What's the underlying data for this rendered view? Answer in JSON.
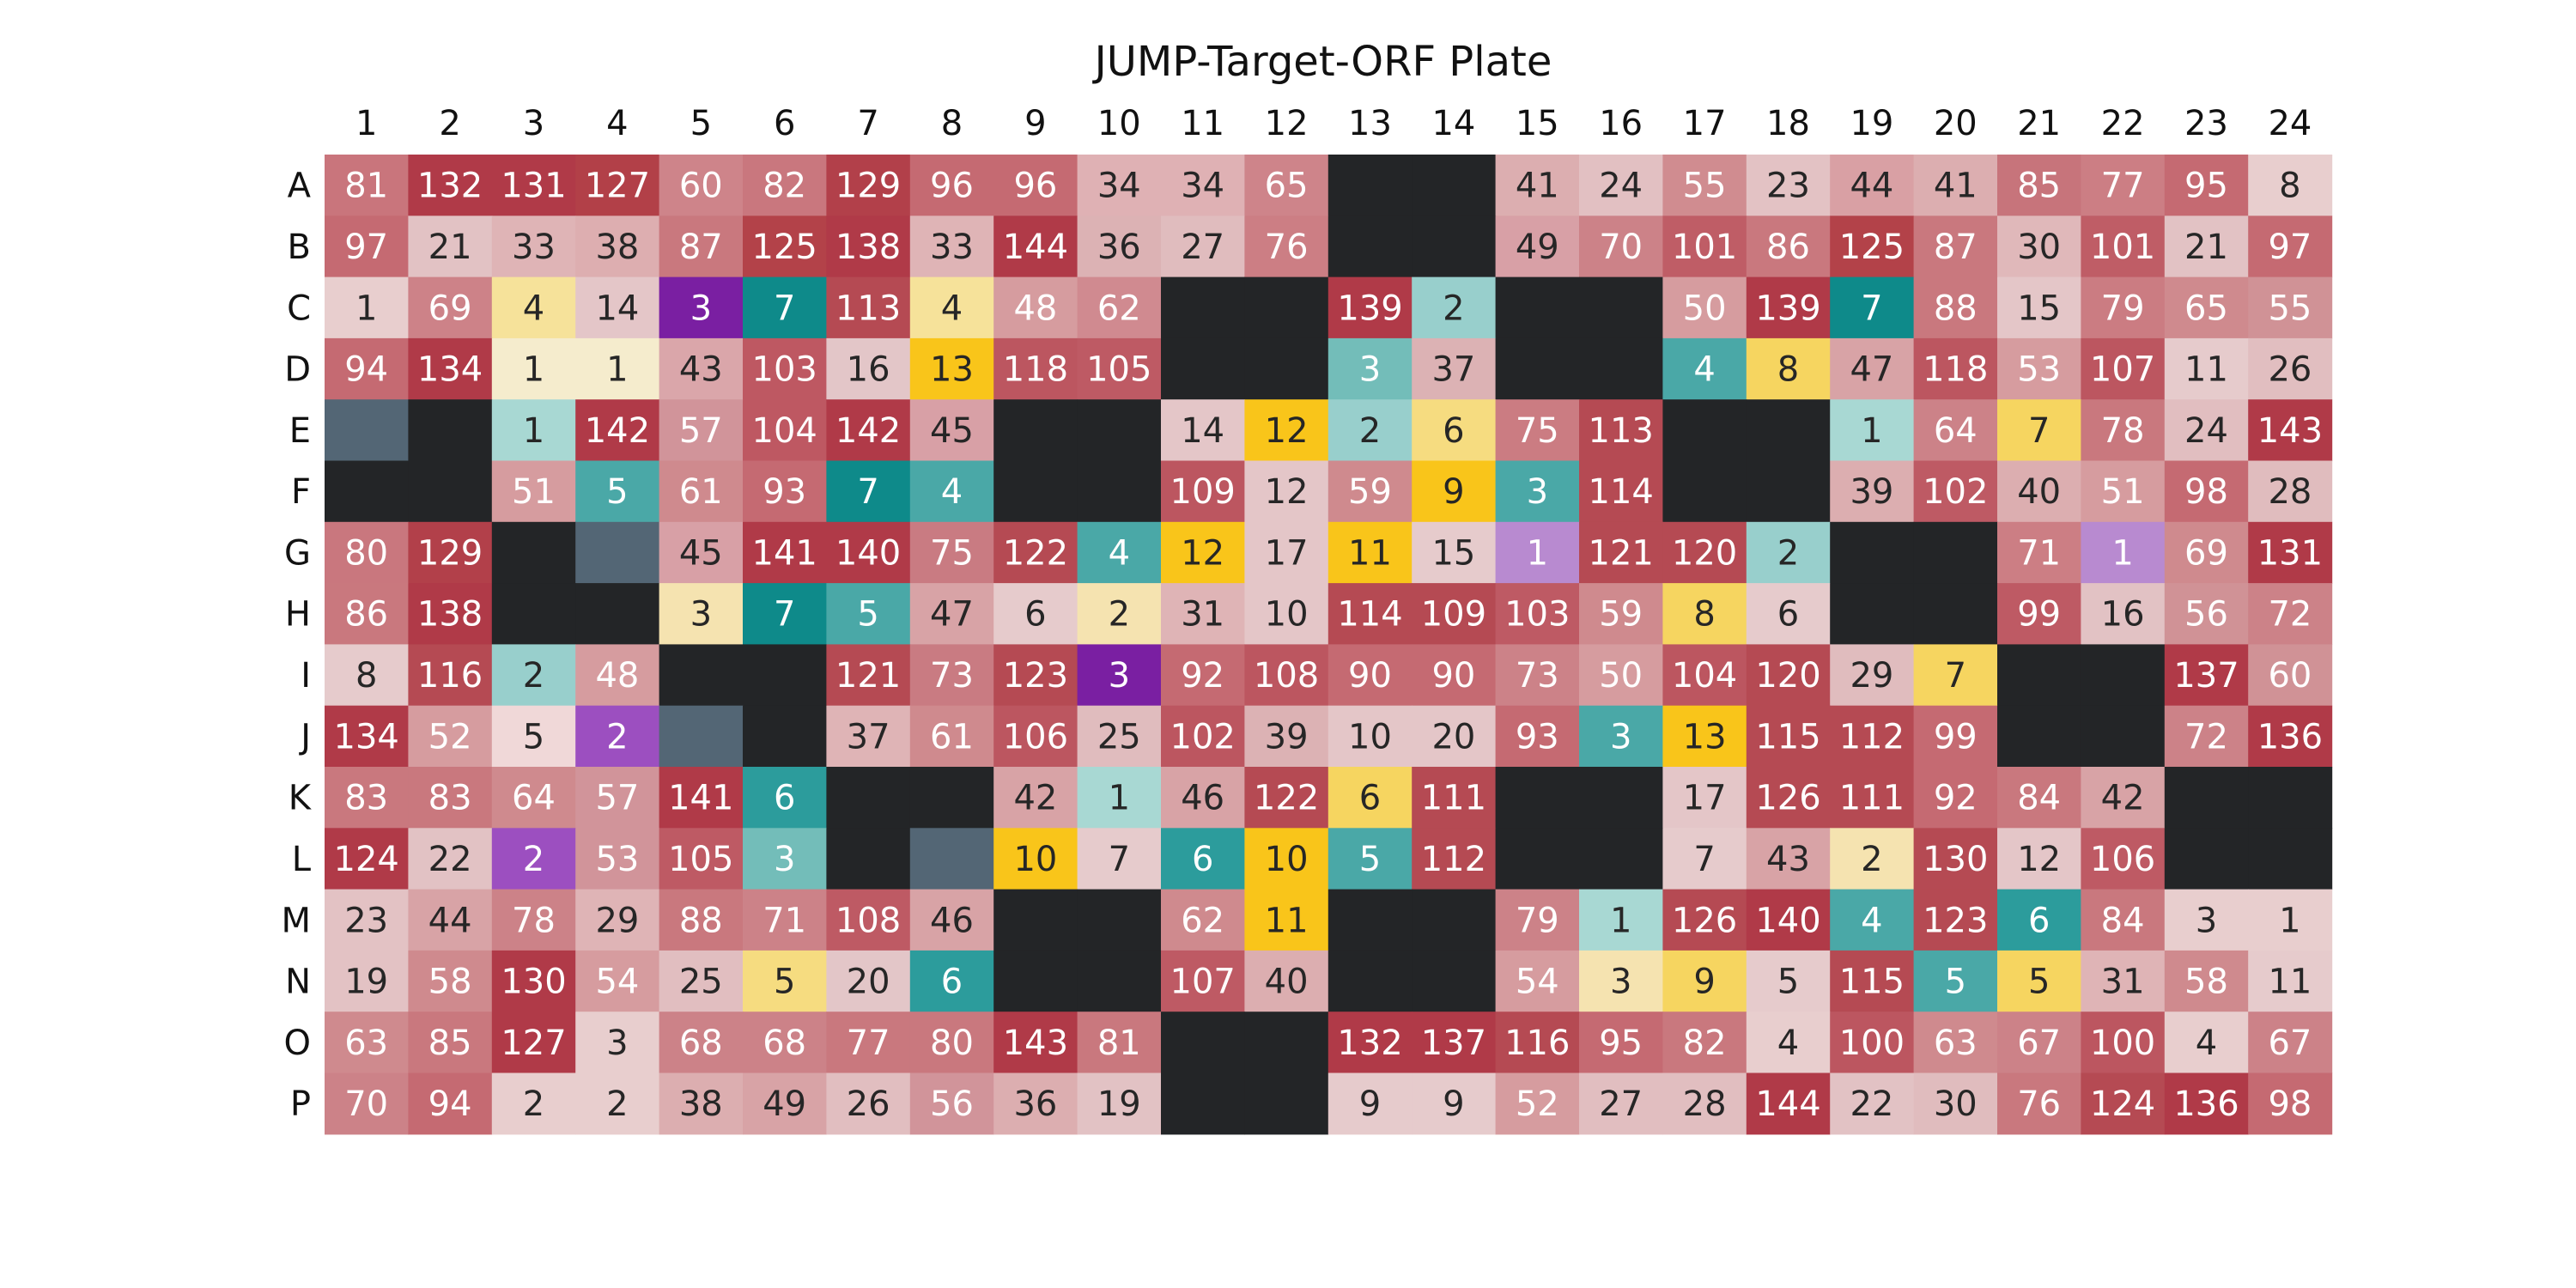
{
  "chart_data": {
    "type": "heatmap",
    "title": "JUMP-Target-ORF Plate",
    "columns": [
      "1",
      "2",
      "3",
      "4",
      "5",
      "6",
      "7",
      "8",
      "9",
      "10",
      "11",
      "12",
      "13",
      "14",
      "15",
      "16",
      "17",
      "18",
      "19",
      "20",
      "21",
      "22",
      "23",
      "24"
    ],
    "rows": [
      "A",
      "B",
      "C",
      "D",
      "E",
      "F",
      "G",
      "H",
      "I",
      "J",
      "K",
      "L",
      "M",
      "N",
      "O",
      "P"
    ],
    "category_colors": {
      "empty": "#232527",
      "control": "#536675",
      "count_high": "#b03a48",
      "count_low": "#e8cece",
      "yellow": "#f9c51a",
      "teal": "#0e8a8a",
      "purple": "#7a1fa2"
    },
    "wells": [
      [
        "81",
        "132",
        "131",
        "127",
        "60",
        "82",
        "129",
        "96",
        "96",
        "34",
        "34",
        "65",
        "",
        "",
        "41",
        "24",
        "55",
        "23",
        "44",
        "41",
        "85",
        "77",
        "95",
        "8"
      ],
      [
        "97",
        "21",
        "33",
        "38",
        "87",
        "125",
        "138",
        "33",
        "144",
        "36",
        "27",
        "76",
        "",
        "",
        "49",
        "70",
        "101",
        "86",
        "125",
        "87",
        "30",
        "101",
        "21",
        "97"
      ],
      [
        "1",
        "69",
        "4",
        "14",
        "3",
        "7",
        "113",
        "4",
        "48",
        "62",
        "",
        "",
        "139",
        "2",
        "",
        "",
        "50",
        "139",
        "7",
        "88",
        "15",
        "79",
        "65",
        "55"
      ],
      [
        "94",
        "134",
        "1",
        "1",
        "43",
        "103",
        "16",
        "13",
        "118",
        "105",
        "",
        "",
        "3",
        "37",
        "",
        "",
        "4",
        "8",
        "47",
        "118",
        "53",
        "107",
        "11",
        "26"
      ],
      [
        "",
        "",
        "1",
        "142",
        "57",
        "104",
        "142",
        "45",
        "",
        "",
        "14",
        "12",
        "2",
        "6",
        "75",
        "113",
        "",
        "",
        "1",
        "64",
        "7",
        "78",
        "24",
        "143"
      ],
      [
        "",
        "",
        "51",
        "5",
        "61",
        "93",
        "7",
        "4",
        "",
        "",
        "109",
        "12",
        "59",
        "9",
        "3",
        "114",
        "",
        "",
        "39",
        "102",
        "40",
        "51",
        "98",
        "28"
      ],
      [
        "80",
        "129",
        "",
        "",
        "45",
        "141",
        "140",
        "75",
        "122",
        "4",
        "12",
        "17",
        "11",
        "15",
        "1",
        "121",
        "120",
        "2",
        "",
        "",
        "71",
        "1",
        "69",
        "131"
      ],
      [
        "86",
        "138",
        "",
        "",
        "3",
        "7",
        "5",
        "47",
        "6",
        "2",
        "31",
        "10",
        "114",
        "109",
        "103",
        "59",
        "8",
        "6",
        "",
        "",
        "99",
        "16",
        "56",
        "72"
      ],
      [
        "8",
        "116",
        "2",
        "48",
        "",
        "",
        "121",
        "73",
        "123",
        "3",
        "92",
        "108",
        "90",
        "90",
        "73",
        "50",
        "104",
        "120",
        "29",
        "7",
        "",
        "",
        "137",
        "60"
      ],
      [
        "134",
        "52",
        "5",
        "2",
        "",
        "",
        "37",
        "61",
        "106",
        "25",
        "102",
        "39",
        "10",
        "20",
        "93",
        "3",
        "13",
        "115",
        "112",
        "99",
        "",
        "",
        "72",
        "136"
      ],
      [
        "83",
        "83",
        "64",
        "57",
        "141",
        "6",
        "",
        "",
        "42",
        "1",
        "46",
        "122",
        "6",
        "111",
        "",
        "",
        "17",
        "126",
        "111",
        "92",
        "84",
        "42",
        "",
        ""
      ],
      [
        "124",
        "22",
        "2",
        "53",
        "105",
        "3",
        "",
        "",
        "10",
        "7",
        "6",
        "10",
        "5",
        "112",
        "",
        "",
        "7",
        "43",
        "2",
        "130",
        "12",
        "106",
        "",
        ""
      ],
      [
        "23",
        "44",
        "78",
        "29",
        "88",
        "71",
        "108",
        "46",
        "",
        "",
        "62",
        "11",
        "",
        "",
        "79",
        "1",
        "126",
        "140",
        "4",
        "123",
        "6",
        "84",
        "3",
        "1"
      ],
      [
        "19",
        "58",
        "130",
        "54",
        "25",
        "5",
        "20",
        "6",
        "",
        "",
        "107",
        "40",
        "",
        "",
        "54",
        "3",
        "9",
        "5",
        "115",
        "5",
        "5",
        "31",
        "58",
        "11"
      ],
      [
        "63",
        "85",
        "127",
        "3",
        "68",
        "68",
        "77",
        "80",
        "143",
        "81",
        "",
        "",
        "132",
        "137",
        "116",
        "95",
        "82",
        "4",
        "100",
        "63",
        "67",
        "100",
        "4",
        "67"
      ],
      [
        "70",
        "94",
        "2",
        "2",
        "38",
        "49",
        "26",
        "56",
        "36",
        "19",
        "",
        "",
        "9",
        "9",
        "52",
        "27",
        "28",
        "144",
        "22",
        "30",
        "76",
        "124",
        "136",
        "98"
      ]
    ],
    "well_colors": [
      [
        "#c9757c",
        "#b03a48",
        "#b03a48",
        "#b24048",
        "#ce848a",
        "#c9777e",
        "#b2404a",
        "#c56a72",
        "#c56a72",
        "#dfb1b4",
        "#dfb1b4",
        "#ce848a",
        "#232527",
        "#232527",
        "#dcaeb0",
        "#e2c0c2",
        "#d08c90",
        "#e3c2c4",
        "#d9a0a4",
        "#dcaeb0",
        "#c7747b",
        "#cc7e84",
        "#c56a72",
        "#e8cece"
      ],
      [
        "#c56a72",
        "#e2c2c4",
        "#dfb4b6",
        "#ddaeb0",
        "#c9787e",
        "#b34249",
        "#b03a48",
        "#dfb4b6",
        "#b03a48",
        "#dcb2b4",
        "#e0bcbe",
        "#cc7e84",
        "#232527",
        "#232527",
        "#d8a0a6",
        "#cc8288",
        "#bf5d66",
        "#c9787e",
        "#b34249",
        "#c9787e",
        "#e0b8ba",
        "#bf5d66",
        "#e2c2c4",
        "#c56a72"
      ],
      [
        "#e8cece",
        "#cd8288",
        "#f6e29a",
        "#e4c6c8",
        "#7a1fa2",
        "#0e8a8a",
        "#b54a53",
        "#f6e29a",
        "#d69c9f",
        "#d08a90",
        "#232527",
        "#232527",
        "#b03a48",
        "#98cfcc",
        "#232527",
        "#232527",
        "#d69c9f",
        "#b03a48",
        "#0e8a8a",
        "#c9787e",
        "#e4c6c8",
        "#cb7c82",
        "#cf8a8e",
        "#d09296"
      ],
      [
        "#c56a72",
        "#b03a48",
        "#f5eccd",
        "#f5eccd",
        "#daa6aa",
        "#be5862",
        "#e3c6c8",
        "#f9c51a",
        "#bc5660",
        "#be5a64",
        "#232527",
        "#232527",
        "#73bdb9",
        "#dcb2b4",
        "#232527",
        "#232527",
        "#4aa8a7",
        "#f6d560",
        "#d8a3a6",
        "#bc5660",
        "#d69c9f",
        "#bc5660",
        "#e6cbcc",
        "#e1bec0"
      ],
      [
        "#536675",
        "#232527",
        "#a8d8d3",
        "#b03a48",
        "#d1949a",
        "#be5862",
        "#b03a48",
        "#d8a0a6",
        "#232527",
        "#232527",
        "#e4c6c8",
        "#f9c51a",
        "#98cfcc",
        "#f6dc80",
        "#cb7c82",
        "#b54a53",
        "#232527",
        "#232527",
        "#a8d8d3",
        "#cc8288",
        "#f6d560",
        "#c9787e",
        "#e1bec0",
        "#b03a48"
      ],
      [
        "#232527",
        "#232527",
        "#d69c9f",
        "#4aa8a7",
        "#cf8a8e",
        "#c56a72",
        "#0e8a8a",
        "#4aa8a7",
        "#232527",
        "#232527",
        "#bc5660",
        "#e4c6c8",
        "#cf8a8e",
        "#f9c51a",
        "#4aa8a7",
        "#b54a53",
        "#232527",
        "#232527",
        "#dcaeb0",
        "#be5a64",
        "#dcaeb0",
        "#d69c9f",
        "#c56a72",
        "#e0bcbe"
      ],
      [
        "#c9777e",
        "#b2404a",
        "#232527",
        "#536675",
        "#d8a0a6",
        "#b03a48",
        "#b03a48",
        "#c97b82",
        "#b54a53",
        "#4aa8a7",
        "#f9c51a",
        "#e4c6c8",
        "#f9c51a",
        "#e6cbcc",
        "#b88ad0",
        "#b54a53",
        "#b54a53",
        "#98cfcc",
        "#232527",
        "#232527",
        "#cc7e84",
        "#b88ad0",
        "#cf8a8e",
        "#b03a48"
      ],
      [
        "#c9787e",
        "#b03a48",
        "#232527",
        "#232527",
        "#f5e3b0",
        "#0e8a8a",
        "#4aa8a7",
        "#d8a3a6",
        "#e6cbcc",
        "#f5e3b0",
        "#dfb4b6",
        "#e4c6c8",
        "#b54a53",
        "#b54a53",
        "#be5a64",
        "#cf8a8e",
        "#f6d560",
        "#e6cbcc",
        "#232527",
        "#232527",
        "#be5a64",
        "#e2c2c4",
        "#d09296",
        "#cc8288"
      ],
      [
        "#e6cbcc",
        "#b54a53",
        "#98cfcc",
        "#d69c9f",
        "#232527",
        "#232527",
        "#b54a53",
        "#c97b82",
        "#b54a53",
        "#7a1fa2",
        "#c56a72",
        "#bc5660",
        "#c56a72",
        "#c56a72",
        "#cc8288",
        "#d69c9f",
        "#bc5660",
        "#b54a53",
        "#e0bcbe",
        "#f6d560",
        "#232527",
        "#232527",
        "#b03a48",
        "#d09296"
      ],
      [
        "#b03a48",
        "#d69c9f",
        "#f0d8d8",
        "#9c4fc0",
        "#536675",
        "#232527",
        "#dfb4b6",
        "#cf8a8e",
        "#bc5660",
        "#e0bcbe",
        "#bc5660",
        "#dcb2b4",
        "#e4c6c8",
        "#e4c6c8",
        "#c56a72",
        "#4aa8a7",
        "#f9c51a",
        "#b54a53",
        "#b54a53",
        "#c56a72",
        "#232527",
        "#232527",
        "#cc8288",
        "#b03a48"
      ],
      [
        "#c9787e",
        "#c9787e",
        "#cf8a8e",
        "#d1949a",
        "#b03a48",
        "#2c9c9c",
        "#232527",
        "#232527",
        "#d8a3a6",
        "#a8d8d3",
        "#d8a3a6",
        "#b54a53",
        "#f6d560",
        "#b54a53",
        "#232527",
        "#232527",
        "#e4c6c8",
        "#b54a53",
        "#b54a53",
        "#c56a72",
        "#c9787e",
        "#d8a3a6",
        "#232527",
        "#232527"
      ],
      [
        "#b03a48",
        "#e2c2c4",
        "#9c4fc0",
        "#d1949a",
        "#be5a64",
        "#73bdb9",
        "#232527",
        "#536675",
        "#f9c51a",
        "#e6cbcc",
        "#2c9c9c",
        "#f9c51a",
        "#4aa8a7",
        "#b54a53",
        "#232527",
        "#232527",
        "#e6cbcc",
        "#d8a3a6",
        "#f5e3b0",
        "#b54a53",
        "#e4c6c8",
        "#be5a64",
        "#232527",
        "#232527"
      ],
      [
        "#e3c2c4",
        "#d8a3a6",
        "#cc8288",
        "#dfb4b6",
        "#c9787e",
        "#cc8288",
        "#be5a64",
        "#d8a3a6",
        "#232527",
        "#232527",
        "#cf8a8e",
        "#f9c51a",
        "#232527",
        "#232527",
        "#cc8288",
        "#a8d8d3",
        "#b54a53",
        "#b03a48",
        "#4aa8a7",
        "#b54a53",
        "#2c9c9c",
        "#c9787e",
        "#e8cece",
        "#e8cece"
      ],
      [
        "#e3c2c4",
        "#cf8a8e",
        "#b03a48",
        "#d69c9f",
        "#e1bec0",
        "#f6dc80",
        "#e3c6c8",
        "#2c9c9c",
        "#232527",
        "#232527",
        "#be5a64",
        "#dcaeb0",
        "#232527",
        "#232527",
        "#d69c9f",
        "#f5e3b0",
        "#f6d560",
        "#e6cbcc",
        "#b54a53",
        "#4aa8a7",
        "#f6d560",
        "#dfb4b6",
        "#cf8a8e",
        "#e6cbcc"
      ],
      [
        "#cf8a8e",
        "#c9787e",
        "#b03a48",
        "#e8cece",
        "#cc8288",
        "#cc8288",
        "#c9787e",
        "#c9787e",
        "#b03a48",
        "#c9787e",
        "#232527",
        "#232527",
        "#b03a48",
        "#b03a48",
        "#b54a53",
        "#c56a72",
        "#c9787e",
        "#e8cece",
        "#bc5660",
        "#cf8a8e",
        "#cc8288",
        "#bc5660",
        "#e8cece",
        "#cc8288"
      ],
      [
        "#cc8288",
        "#c56a72",
        "#e8cece",
        "#e8cece",
        "#dcaeb0",
        "#d8a3a6",
        "#e1bec0",
        "#d1949a",
        "#dcaeb0",
        "#e2c2c4",
        "#232527",
        "#232527",
        "#e6cbcc",
        "#e6cbcc",
        "#d69c9f",
        "#e1bec0",
        "#e1bec0",
        "#b03a48",
        "#e2c2c4",
        "#e0bcbe",
        "#c9787e",
        "#b54a53",
        "#b03a48",
        "#c56a72"
      ]
    ]
  }
}
